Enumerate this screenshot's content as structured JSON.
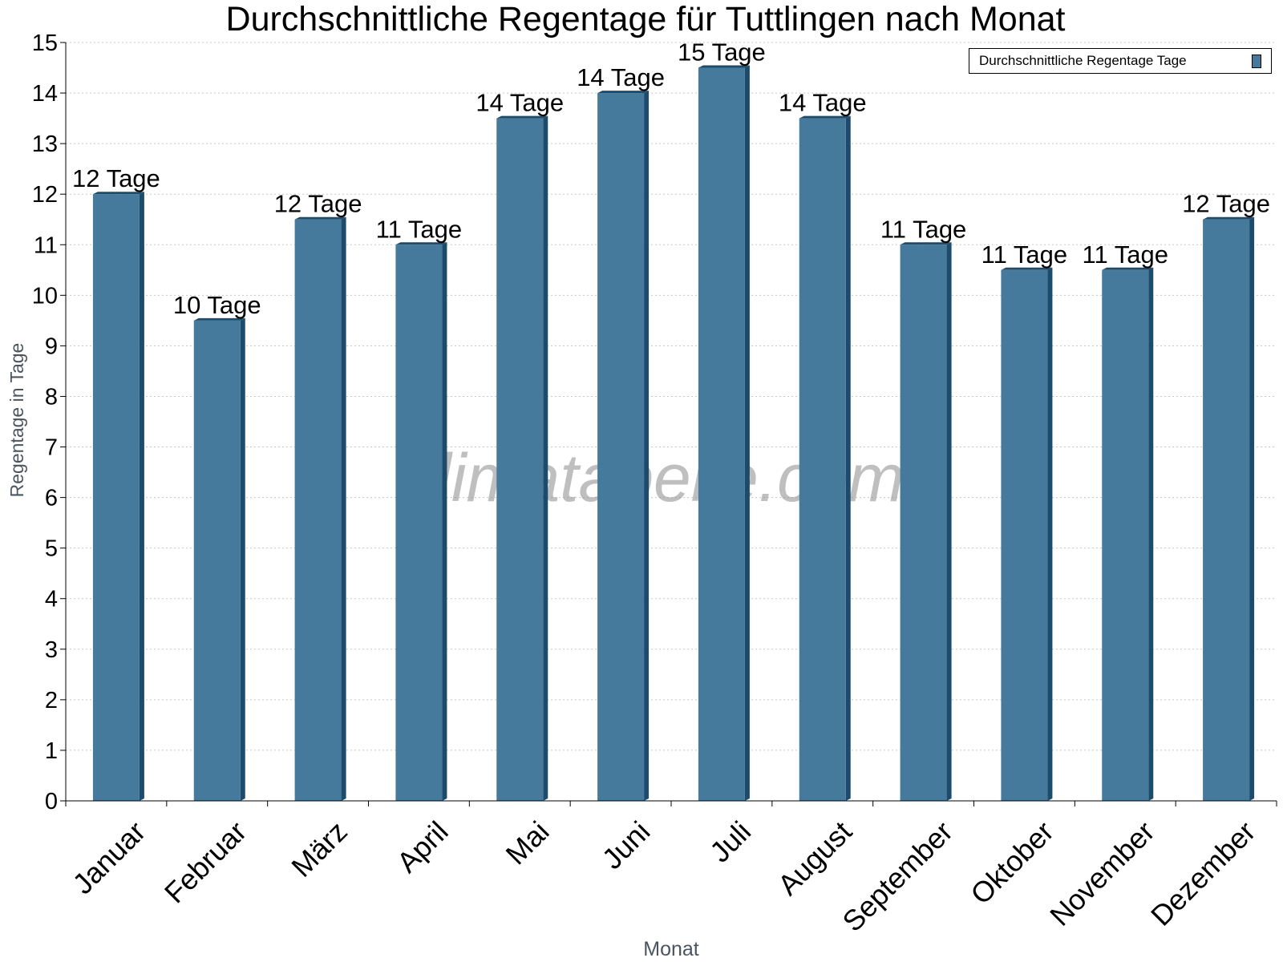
{
  "chart_data": {
    "type": "bar",
    "title": "Durchschnittliche Regentage für Tuttlingen nach Monat",
    "xlabel": "Monat",
    "ylabel": "Regentage in Tage",
    "ylim": [
      0,
      15
    ],
    "yticks": [
      "0",
      "1",
      "2",
      "3",
      "4",
      "5",
      "6",
      "7",
      "8",
      "9",
      "10",
      "11",
      "12",
      "13",
      "14",
      "15"
    ],
    "grid": true,
    "legend_position": "top-right",
    "watermark": "klimatabelle.com",
    "categories": [
      "Januar",
      "Februar",
      "März",
      "April",
      "Mai",
      "Juni",
      "Juli",
      "August",
      "September",
      "Oktober",
      "November",
      "Dezember"
    ],
    "series": [
      {
        "name": "Durchschnittliche Regentage Tage",
        "color": "#457a9c",
        "values": [
          12,
          9.5,
          11.5,
          11,
          13.5,
          14,
          14.5,
          13.5,
          11,
          10.5,
          10.5,
          11.5
        ],
        "labels": [
          "12 Tage",
          "10 Tage",
          "12 Tage",
          "11 Tage",
          "14 Tage",
          "14 Tage",
          "15 Tage",
          "14 Tage",
          "11 Tage",
          "11 Tage",
          "11 Tage",
          "12 Tage"
        ]
      }
    ]
  }
}
